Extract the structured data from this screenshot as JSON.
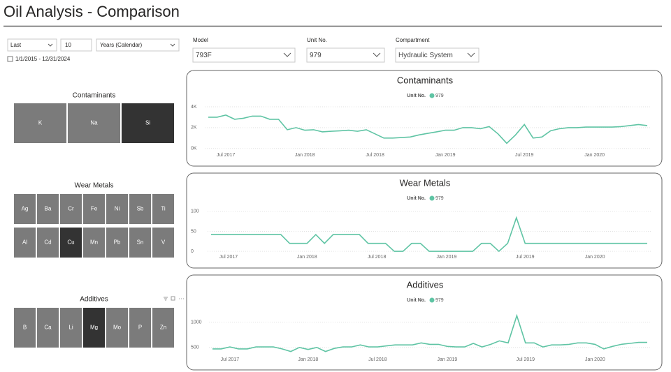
{
  "header": {
    "title": "Oil Analysis - Comparison"
  },
  "date_filter": {
    "mode": "Last",
    "count": "10",
    "unit": "Years (Calendar)",
    "range": "1/1/2015 - 12/31/2024"
  },
  "slicers": [
    {
      "label": "Model",
      "value": "793F"
    },
    {
      "label": "Unit No.",
      "value": "979"
    },
    {
      "label": "Compartment",
      "value": "Hydraulic System"
    }
  ],
  "tiles": [
    {
      "title": "Contaminants",
      "items": [
        "K",
        "Na",
        "Si"
      ],
      "columns": 3,
      "selected": 2
    },
    {
      "title": "Wear Metals",
      "items": [
        "Ag",
        "Ba",
        "Cr",
        "Fe",
        "Ni",
        "Sb",
        "Ti",
        "Al",
        "Cd",
        "Cu",
        "Mn",
        "Pb",
        "Sn",
        "V"
      ],
      "columns": 7,
      "selected": 9
    },
    {
      "title": "Additives",
      "items": [
        "B",
        "Ca",
        "Li",
        "Mg",
        "Mo",
        "P",
        "Zn"
      ],
      "columns": 7,
      "selected": 3
    }
  ],
  "chart_data": [
    {
      "type": "line",
      "title": "Contaminants",
      "legend_title": "Unit No.",
      "categories": [
        null,
        null,
        "Jul 2017",
        null,
        null,
        null,
        null,
        null,
        null,
        null,
        null,
        "Jan 2018",
        null,
        null,
        null,
        null,
        null,
        null,
        null,
        "Jul 2018",
        null,
        null,
        null,
        null,
        null,
        null,
        null,
        "Jan 2019",
        null,
        null,
        null,
        null,
        null,
        null,
        null,
        null,
        "Jul 2019",
        null,
        null,
        null,
        null,
        null,
        null,
        null,
        "Jan 2020",
        null,
        null,
        null,
        null,
        null,
        null
      ],
      "series": [
        {
          "name": "979",
          "color": "#5fc4a4",
          "values": [
            3000,
            3000,
            3200,
            2800,
            2900,
            3100,
            3100,
            2800,
            2800,
            1800,
            2000,
            1750,
            1800,
            1600,
            1650,
            1700,
            1750,
            1650,
            1800,
            1400,
            1000,
            1000,
            1050,
            1100,
            1300,
            1450,
            1600,
            1750,
            1750,
            2000,
            2000,
            1900,
            2100,
            1400,
            500,
            1300,
            2300,
            1000,
            1100,
            1700,
            1900,
            2000,
            2000,
            2050,
            2050,
            2050,
            2050,
            2100,
            2200,
            2300,
            2200
          ]
        }
      ],
      "ylim": [
        -150,
        4200
      ],
      "yticks": [
        {
          "value": 0,
          "label": "0K"
        },
        {
          "value": 2000,
          "label": "2K"
        },
        {
          "value": 4000,
          "label": "4K"
        }
      ],
      "grid": true
    },
    {
      "type": "line",
      "title": "Wear Metals",
      "legend_title": "Unit No.",
      "categories": [
        null,
        null,
        "Jul 2017",
        null,
        null,
        null,
        null,
        null,
        null,
        null,
        null,
        "Jan 2018",
        null,
        null,
        null,
        null,
        null,
        null,
        null,
        "Jul 2018",
        null,
        null,
        null,
        null,
        null,
        null,
        null,
        "Jan 2019",
        null,
        null,
        null,
        null,
        null,
        null,
        null,
        null,
        "Jul 2019",
        null,
        null,
        null,
        null,
        null,
        null,
        null,
        "Jan 2020",
        null,
        null,
        null,
        null,
        null,
        null
      ],
      "series": [
        {
          "name": "979",
          "color": "#5fc4a4",
          "values": [
            42,
            42,
            42,
            42,
            42,
            42,
            42,
            42,
            42,
            20,
            20,
            20,
            42,
            20,
            42,
            42,
            42,
            42,
            20,
            20,
            20,
            0,
            0,
            20,
            20,
            0,
            0,
            0,
            0,
            0,
            0,
            20,
            20,
            0,
            20,
            84,
            20,
            20,
            20,
            20,
            20,
            20,
            20,
            20,
            20,
            20,
            20,
            20,
            20,
            20,
            20
          ]
        }
      ],
      "ylim": [
        -5,
        105
      ],
      "yticks": [
        0,
        50,
        100
      ],
      "grid": true
    },
    {
      "type": "line",
      "title": "Additives",
      "legend_title": "Unit No.",
      "categories": [
        null,
        null,
        "Jul 2017",
        null,
        null,
        null,
        null,
        null,
        null,
        null,
        null,
        "Jan 2018",
        null,
        null,
        null,
        null,
        null,
        null,
        null,
        "Jul 2018",
        null,
        null,
        null,
        null,
        null,
        null,
        null,
        "Jan 2019",
        null,
        null,
        null,
        null,
        null,
        null,
        null,
        null,
        "Jul 2019",
        null,
        null,
        null,
        null,
        null,
        null,
        null,
        "Jan 2020",
        null,
        null,
        null,
        null,
        null,
        null
      ],
      "series": [
        {
          "name": "979",
          "color": "#5fc4a4",
          "values": [
            470,
            470,
            510,
            470,
            470,
            510,
            510,
            510,
            470,
            420,
            500,
            460,
            500,
            420,
            480,
            510,
            510,
            550,
            510,
            510,
            530,
            550,
            550,
            550,
            590,
            560,
            560,
            520,
            510,
            510,
            580,
            510,
            560,
            630,
            590,
            1130,
            590,
            590,
            510,
            550,
            550,
            560,
            590,
            590,
            560,
            470,
            520,
            560,
            580,
            600,
            600
          ]
        }
      ],
      "ylim": [
        400,
        1300
      ],
      "yticks": [
        500,
        1000
      ],
      "grid": true
    }
  ]
}
